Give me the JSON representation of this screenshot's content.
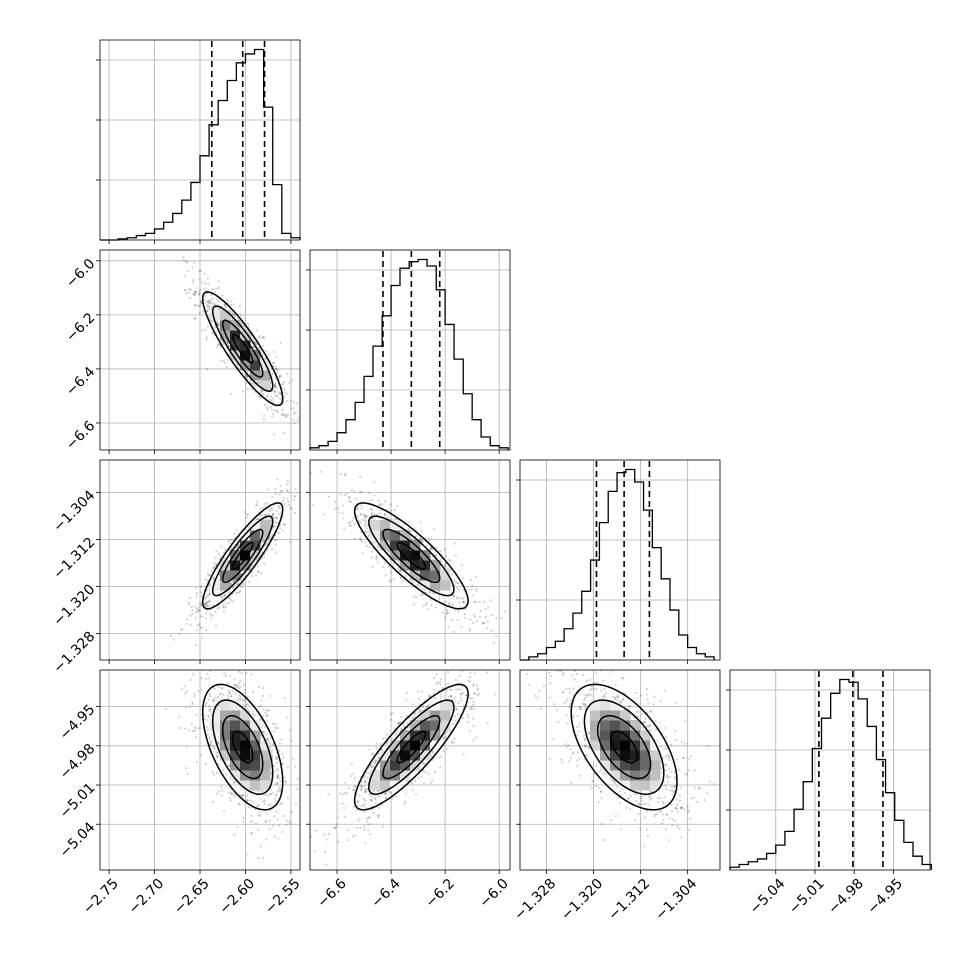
{
  "chart_data": {
    "type": "corner",
    "parameters": [
      {
        "range": [
          -2.76,
          -2.54
        ],
        "ticks": [
          -2.75,
          -2.7,
          -2.65,
          -2.6,
          -2.55
        ],
        "tick_labels": [
          "−2.75",
          "−2.70",
          "−2.65",
          "−2.60",
          "−2.55"
        ],
        "quantiles": [
          -2.637,
          -2.603,
          -2.579
        ]
      },
      {
        "range": [
          -6.7,
          -5.96
        ],
        "ticks": [
          -6.6,
          -6.4,
          -6.2,
          -6.0
        ],
        "tick_labels": [
          "−6.6",
          "−6.4",
          "−6.2",
          "−6.0"
        ],
        "quantiles": [
          -6.43,
          -6.325,
          -6.22
        ]
      },
      {
        "range": [
          -1.3325,
          -1.2985
        ],
        "ticks": [
          -1.328,
          -1.32,
          -1.312,
          -1.304
        ],
        "tick_labels": [
          "−1.328",
          "−1.320",
          "−1.312",
          "−1.304"
        ],
        "quantiles": [
          -1.3195,
          -1.3148,
          -1.3105
        ]
      },
      {
        "range": [
          -5.075,
          -4.922
        ],
        "ticks": [
          -5.04,
          -5.01,
          -4.98,
          -4.95
        ],
        "tick_labels": [
          "−5.04",
          "−5.01",
          "−4.98",
          "−4.95"
        ],
        "quantiles": [
          -5.007,
          -4.981,
          -4.958
        ]
      }
    ],
    "histograms": [
      {
        "edges": [
          -2.76,
          -2.75,
          -2.74,
          -2.73,
          -2.72,
          -2.71,
          -2.7,
          -2.69,
          -2.68,
          -2.67,
          -2.66,
          -2.65,
          -2.64,
          -2.63,
          -2.62,
          -2.61,
          -2.6,
          -2.59,
          -2.58,
          -2.57,
          -2.56,
          -2.55,
          -2.54
        ],
        "counts": [
          0,
          0,
          0.5,
          1,
          2,
          3,
          5,
          8,
          12,
          18,
          26,
          38,
          52,
          63,
          72,
          80,
          84,
          86,
          60,
          25,
          3,
          1
        ]
      },
      {
        "edges": [
          -6.7,
          -6.667,
          -6.633,
          -6.6,
          -6.567,
          -6.533,
          -6.5,
          -6.467,
          -6.433,
          -6.4,
          -6.367,
          -6.333,
          -6.3,
          -6.267,
          -6.233,
          -6.2,
          -6.167,
          -6.133,
          -6.1,
          -6.067,
          -6.033,
          -6.0,
          -5.967
        ],
        "counts": [
          1,
          2,
          4,
          8,
          14,
          22,
          34,
          48,
          62,
          76,
          84,
          87,
          88,
          85,
          74,
          58,
          42,
          26,
          14,
          6,
          2,
          1
        ]
      },
      {
        "edges": [
          -1.3325,
          -1.331,
          -1.3295,
          -1.328,
          -1.3265,
          -1.325,
          -1.3235,
          -1.322,
          -1.3205,
          -1.319,
          -1.3175,
          -1.316,
          -1.3145,
          -1.313,
          -1.3115,
          -1.31,
          -1.3085,
          -1.307,
          -1.3055,
          -1.304,
          -1.3025,
          -1.301,
          -1.2995
        ],
        "counts": [
          0,
          1,
          2,
          4,
          6,
          10,
          15,
          22,
          32,
          44,
          54,
          60,
          61,
          57,
          48,
          36,
          26,
          16,
          8,
          4,
          2,
          1
        ]
      },
      {
        "edges": [
          -5.075,
          -5.068,
          -5.061,
          -5.054,
          -5.047,
          -5.04,
          -5.033,
          -5.026,
          -5.019,
          -5.012,
          -5.005,
          -4.998,
          -4.991,
          -4.984,
          -4.977,
          -4.97,
          -4.963,
          -4.956,
          -4.949,
          -4.942,
          -4.935,
          -4.928,
          -4.921
        ],
        "counts": [
          1,
          2,
          3,
          4,
          6,
          9,
          14,
          22,
          32,
          44,
          55,
          64,
          69,
          68,
          62,
          52,
          40,
          28,
          18,
          10,
          5,
          2
        ]
      }
    ],
    "pairs": [
      {
        "x_param": 0,
        "y_param": 1,
        "mean": [
          -2.603,
          -6.325
        ],
        "sd": [
          0.022,
          0.105
        ],
        "corr": -0.88
      },
      {
        "x_param": 0,
        "y_param": 2,
        "mean": [
          -2.603,
          -1.3148
        ],
        "sd": [
          0.022,
          0.0045
        ],
        "corr": 0.88
      },
      {
        "x_param": 1,
        "y_param": 2,
        "mean": [
          -6.325,
          -1.3148
        ],
        "sd": [
          0.105,
          0.0045
        ],
        "corr": -0.85
      },
      {
        "x_param": 0,
        "y_param": 3,
        "mean": [
          -2.603,
          -4.981
        ],
        "sd": [
          0.022,
          0.024
        ],
        "corr": -0.55
      },
      {
        "x_param": 1,
        "y_param": 3,
        "mean": [
          -6.325,
          -4.981
        ],
        "sd": [
          0.105,
          0.024
        ],
        "corr": 0.85
      },
      {
        "x_param": 2,
        "y_param": 3,
        "mean": [
          -1.3148,
          -4.981
        ],
        "sd": [
          0.0045,
          0.024
        ],
        "corr": -0.55
      }
    ],
    "contour_levels_sigma": [
      0.5,
      1.0,
      1.5,
      2.0
    ],
    "grid": true
  }
}
